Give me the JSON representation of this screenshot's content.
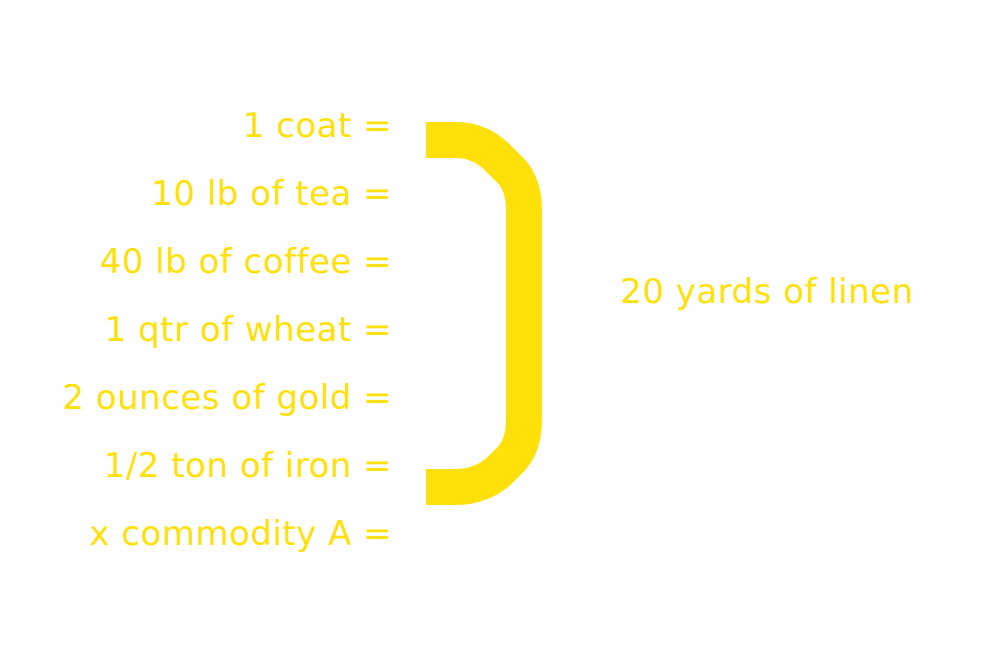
{
  "colors": {
    "accent": "#FFE00A",
    "background": "#FFFFFF"
  },
  "equivalents": [
    "1 coat =",
    "10 lb of tea =",
    "40 lb of coffee =",
    "1 qtr of wheat =",
    "2 ounces of gold =",
    "1/2 ton of iron =",
    "x commodity A ="
  ],
  "result": "20 yards of linen"
}
